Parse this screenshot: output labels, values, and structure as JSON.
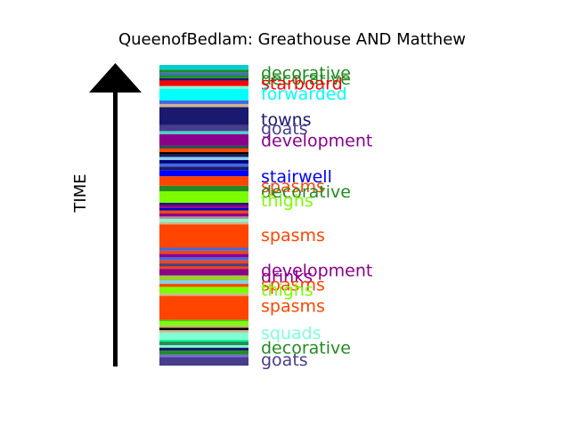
{
  "chart_data": {
    "type": "timeline-strip",
    "title": "QueenofBedlam: Greathouse AND Matthew",
    "axis_label": "TIME",
    "labels": [
      {
        "text": "decorative",
        "color": "#228b22",
        "y": 0.975
      },
      {
        "text": "decorative",
        "color": "#228b22",
        "y": 0.955
      },
      {
        "text": "starboard",
        "color": "#ff0000",
        "y": 0.94
      },
      {
        "text": "forwarded",
        "color": "#00ffff",
        "y": 0.905
      },
      {
        "text": "towns",
        "color": "#191970",
        "y": 0.82
      },
      {
        "text": "goats",
        "color": "#483d8b",
        "y": 0.79
      },
      {
        "text": "development",
        "color": "#8b008b",
        "y": 0.75
      },
      {
        "text": "stairwell",
        "color": "#0000ff",
        "y": 0.63
      },
      {
        "text": "spasms",
        "color": "#ff4500",
        "y": 0.598
      },
      {
        "text": "decorative",
        "color": "#228b22",
        "y": 0.58
      },
      {
        "text": "thighs",
        "color": "#7cfc00",
        "y": 0.55
      },
      {
        "text": "spasms",
        "color": "#ff4500",
        "y": 0.435
      },
      {
        "text": "development",
        "color": "#8b008b",
        "y": 0.318
      },
      {
        "text": "drinks",
        "color": "#8b008b",
        "y": 0.297
      },
      {
        "text": "spasms",
        "color": "#ff4500",
        "y": 0.27
      },
      {
        "text": "thighs",
        "color": "#7cfc00",
        "y": 0.253
      },
      {
        "text": "spasms",
        "color": "#ff4500",
        "y": 0.2
      },
      {
        "text": "squads",
        "color": "#7fffd4",
        "y": 0.11
      },
      {
        "text": "decorative",
        "color": "#228b22",
        "y": 0.06
      },
      {
        "text": "goats",
        "color": "#483d8b",
        "y": 0.02
      }
    ],
    "bands": [
      {
        "y0": 0.0,
        "y1": 0.028,
        "color": "#483d8b"
      },
      {
        "y0": 0.028,
        "y1": 0.036,
        "color": "#7b68ee"
      },
      {
        "y0": 0.036,
        "y1": 0.05,
        "color": "#228b22"
      },
      {
        "y0": 0.05,
        "y1": 0.06,
        "color": "#191970"
      },
      {
        "y0": 0.06,
        "y1": 0.068,
        "color": "#7fffd4"
      },
      {
        "y0": 0.068,
        "y1": 0.08,
        "color": "#2e8b57"
      },
      {
        "y0": 0.08,
        "y1": 0.086,
        "color": "#00fa9a"
      },
      {
        "y0": 0.086,
        "y1": 0.11,
        "color": "#7fffd4"
      },
      {
        "y0": 0.11,
        "y1": 0.118,
        "color": "#d2b48c"
      },
      {
        "y0": 0.118,
        "y1": 0.126,
        "color": "#000000"
      },
      {
        "y0": 0.126,
        "y1": 0.134,
        "color": "#bdb76b"
      },
      {
        "y0": 0.134,
        "y1": 0.148,
        "color": "#7cfc00"
      },
      {
        "y0": 0.148,
        "y1": 0.152,
        "color": "#32cd32"
      },
      {
        "y0": 0.152,
        "y1": 0.232,
        "color": "#ff4500"
      },
      {
        "y0": 0.232,
        "y1": 0.24,
        "color": "#d2b48c"
      },
      {
        "y0": 0.24,
        "y1": 0.262,
        "color": "#7cfc00"
      },
      {
        "y0": 0.262,
        "y1": 0.272,
        "color": "#ff4500"
      },
      {
        "y0": 0.272,
        "y1": 0.284,
        "color": "#87ceeb"
      },
      {
        "y0": 0.284,
        "y1": 0.3,
        "color": "#9acd32"
      },
      {
        "y0": 0.3,
        "y1": 0.322,
        "color": "#8b008b"
      },
      {
        "y0": 0.322,
        "y1": 0.33,
        "color": "#ff4500"
      },
      {
        "y0": 0.33,
        "y1": 0.34,
        "color": "#483d8b"
      },
      {
        "y0": 0.34,
        "y1": 0.35,
        "color": "#ff4500"
      },
      {
        "y0": 0.35,
        "y1": 0.36,
        "color": "#4169e1"
      },
      {
        "y0": 0.36,
        "y1": 0.372,
        "color": "#8b008b"
      },
      {
        "y0": 0.372,
        "y1": 0.382,
        "color": "#ff4500"
      },
      {
        "y0": 0.382,
        "y1": 0.392,
        "color": "#4169e1"
      },
      {
        "y0": 0.392,
        "y1": 0.404,
        "color": "#ff4500"
      },
      {
        "y0": 0.404,
        "y1": 0.47,
        "color": "#ff4500"
      },
      {
        "y0": 0.47,
        "y1": 0.478,
        "color": "#d2b48c"
      },
      {
        "y0": 0.478,
        "y1": 0.488,
        "color": "#7fffd4"
      },
      {
        "y0": 0.488,
        "y1": 0.496,
        "color": "#bc8f8f"
      },
      {
        "y0": 0.496,
        "y1": 0.506,
        "color": "#8b008b"
      },
      {
        "y0": 0.506,
        "y1": 0.516,
        "color": "#ff4500"
      },
      {
        "y0": 0.516,
        "y1": 0.524,
        "color": "#0000cd"
      },
      {
        "y0": 0.524,
        "y1": 0.534,
        "color": "#8b008b"
      },
      {
        "y0": 0.534,
        "y1": 0.542,
        "color": "#191970"
      },
      {
        "y0": 0.542,
        "y1": 0.58,
        "color": "#7cfc00"
      },
      {
        "y0": 0.58,
        "y1": 0.598,
        "color": "#228b22"
      },
      {
        "y0": 0.598,
        "y1": 0.63,
        "color": "#ff4500"
      },
      {
        "y0": 0.63,
        "y1": 0.65,
        "color": "#0000ff"
      },
      {
        "y0": 0.65,
        "y1": 0.662,
        "color": "#191970"
      },
      {
        "y0": 0.662,
        "y1": 0.672,
        "color": "#4169e1"
      },
      {
        "y0": 0.672,
        "y1": 0.684,
        "color": "#000080"
      },
      {
        "y0": 0.684,
        "y1": 0.694,
        "color": "#87ceeb"
      },
      {
        "y0": 0.694,
        "y1": 0.702,
        "color": "#191970"
      },
      {
        "y0": 0.702,
        "y1": 0.71,
        "color": "#000000"
      },
      {
        "y0": 0.71,
        "y1": 0.722,
        "color": "#ff4500"
      },
      {
        "y0": 0.722,
        "y1": 0.732,
        "color": "#2f4f4f"
      },
      {
        "y0": 0.732,
        "y1": 0.77,
        "color": "#8b008b"
      },
      {
        "y0": 0.77,
        "y1": 0.78,
        "color": "#48d1cc"
      },
      {
        "y0": 0.78,
        "y1": 0.8,
        "color": "#483d8b"
      },
      {
        "y0": 0.8,
        "y1": 0.86,
        "color": "#191970"
      },
      {
        "y0": 0.86,
        "y1": 0.87,
        "color": "#d2b48c"
      },
      {
        "y0": 0.87,
        "y1": 0.882,
        "color": "#4169e1"
      },
      {
        "y0": 0.882,
        "y1": 0.92,
        "color": "#00ffff"
      },
      {
        "y0": 0.92,
        "y1": 0.93,
        "color": "#7fffd4"
      },
      {
        "y0": 0.93,
        "y1": 0.948,
        "color": "#ff0000"
      },
      {
        "y0": 0.948,
        "y1": 0.956,
        "color": "#191970"
      },
      {
        "y0": 0.956,
        "y1": 0.966,
        "color": "#228b22"
      },
      {
        "y0": 0.966,
        "y1": 0.974,
        "color": "#4169e1"
      },
      {
        "y0": 0.974,
        "y1": 0.984,
        "color": "#228b22"
      },
      {
        "y0": 0.984,
        "y1": 1.0,
        "color": "#00ced1"
      }
    ]
  }
}
